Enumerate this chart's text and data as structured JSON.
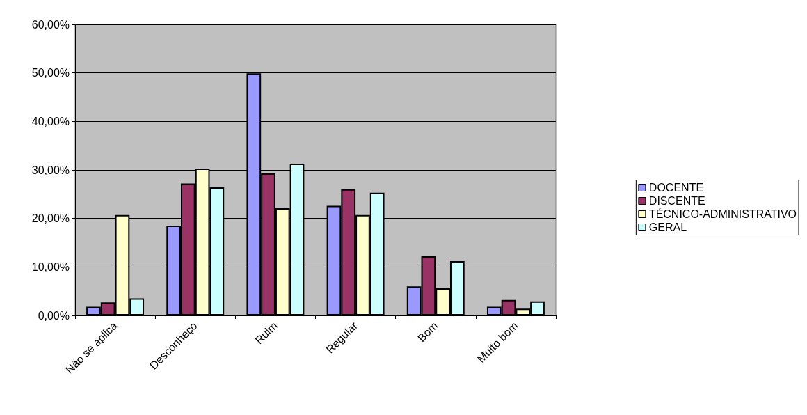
{
  "chart_data": {
    "type": "bar",
    "categories": [
      "Não se aplica",
      "Desconheço",
      "Ruim",
      "Regular",
      "Bom",
      "Muito bom"
    ],
    "series": [
      {
        "name": "DOCENTE",
        "color": "#9999ff",
        "values": [
          1.8,
          18.5,
          49.9,
          22.6,
          6.0,
          1.8
        ]
      },
      {
        "name": "DISCENTE",
        "color": "#993366",
        "values": [
          2.7,
          27.2,
          29.3,
          26.0,
          12.2,
          3.2
        ]
      },
      {
        "name": "TÉCNICO-ADMINISTRATIVO",
        "color": "#ffffcc",
        "values": [
          20.7,
          30.3,
          22.1,
          20.7,
          5.6,
          1.4
        ]
      },
      {
        "name": "GERAL",
        "color": "#ccffff",
        "values": [
          3.5,
          26.4,
          31.3,
          25.3,
          11.2,
          2.9
        ]
      }
    ],
    "ylim": [
      0,
      60
    ],
    "yticks": [
      {
        "value": 0,
        "label": "0,00%"
      },
      {
        "value": 10,
        "label": "10,00%"
      },
      {
        "value": 20,
        "label": "20,00%"
      },
      {
        "value": 30,
        "label": "30,00%"
      },
      {
        "value": 40,
        "label": "40,00%"
      },
      {
        "value": 50,
        "label": "50,00%"
      },
      {
        "value": 60,
        "label": "60,00%"
      }
    ],
    "grid": "y",
    "legend": "right"
  }
}
